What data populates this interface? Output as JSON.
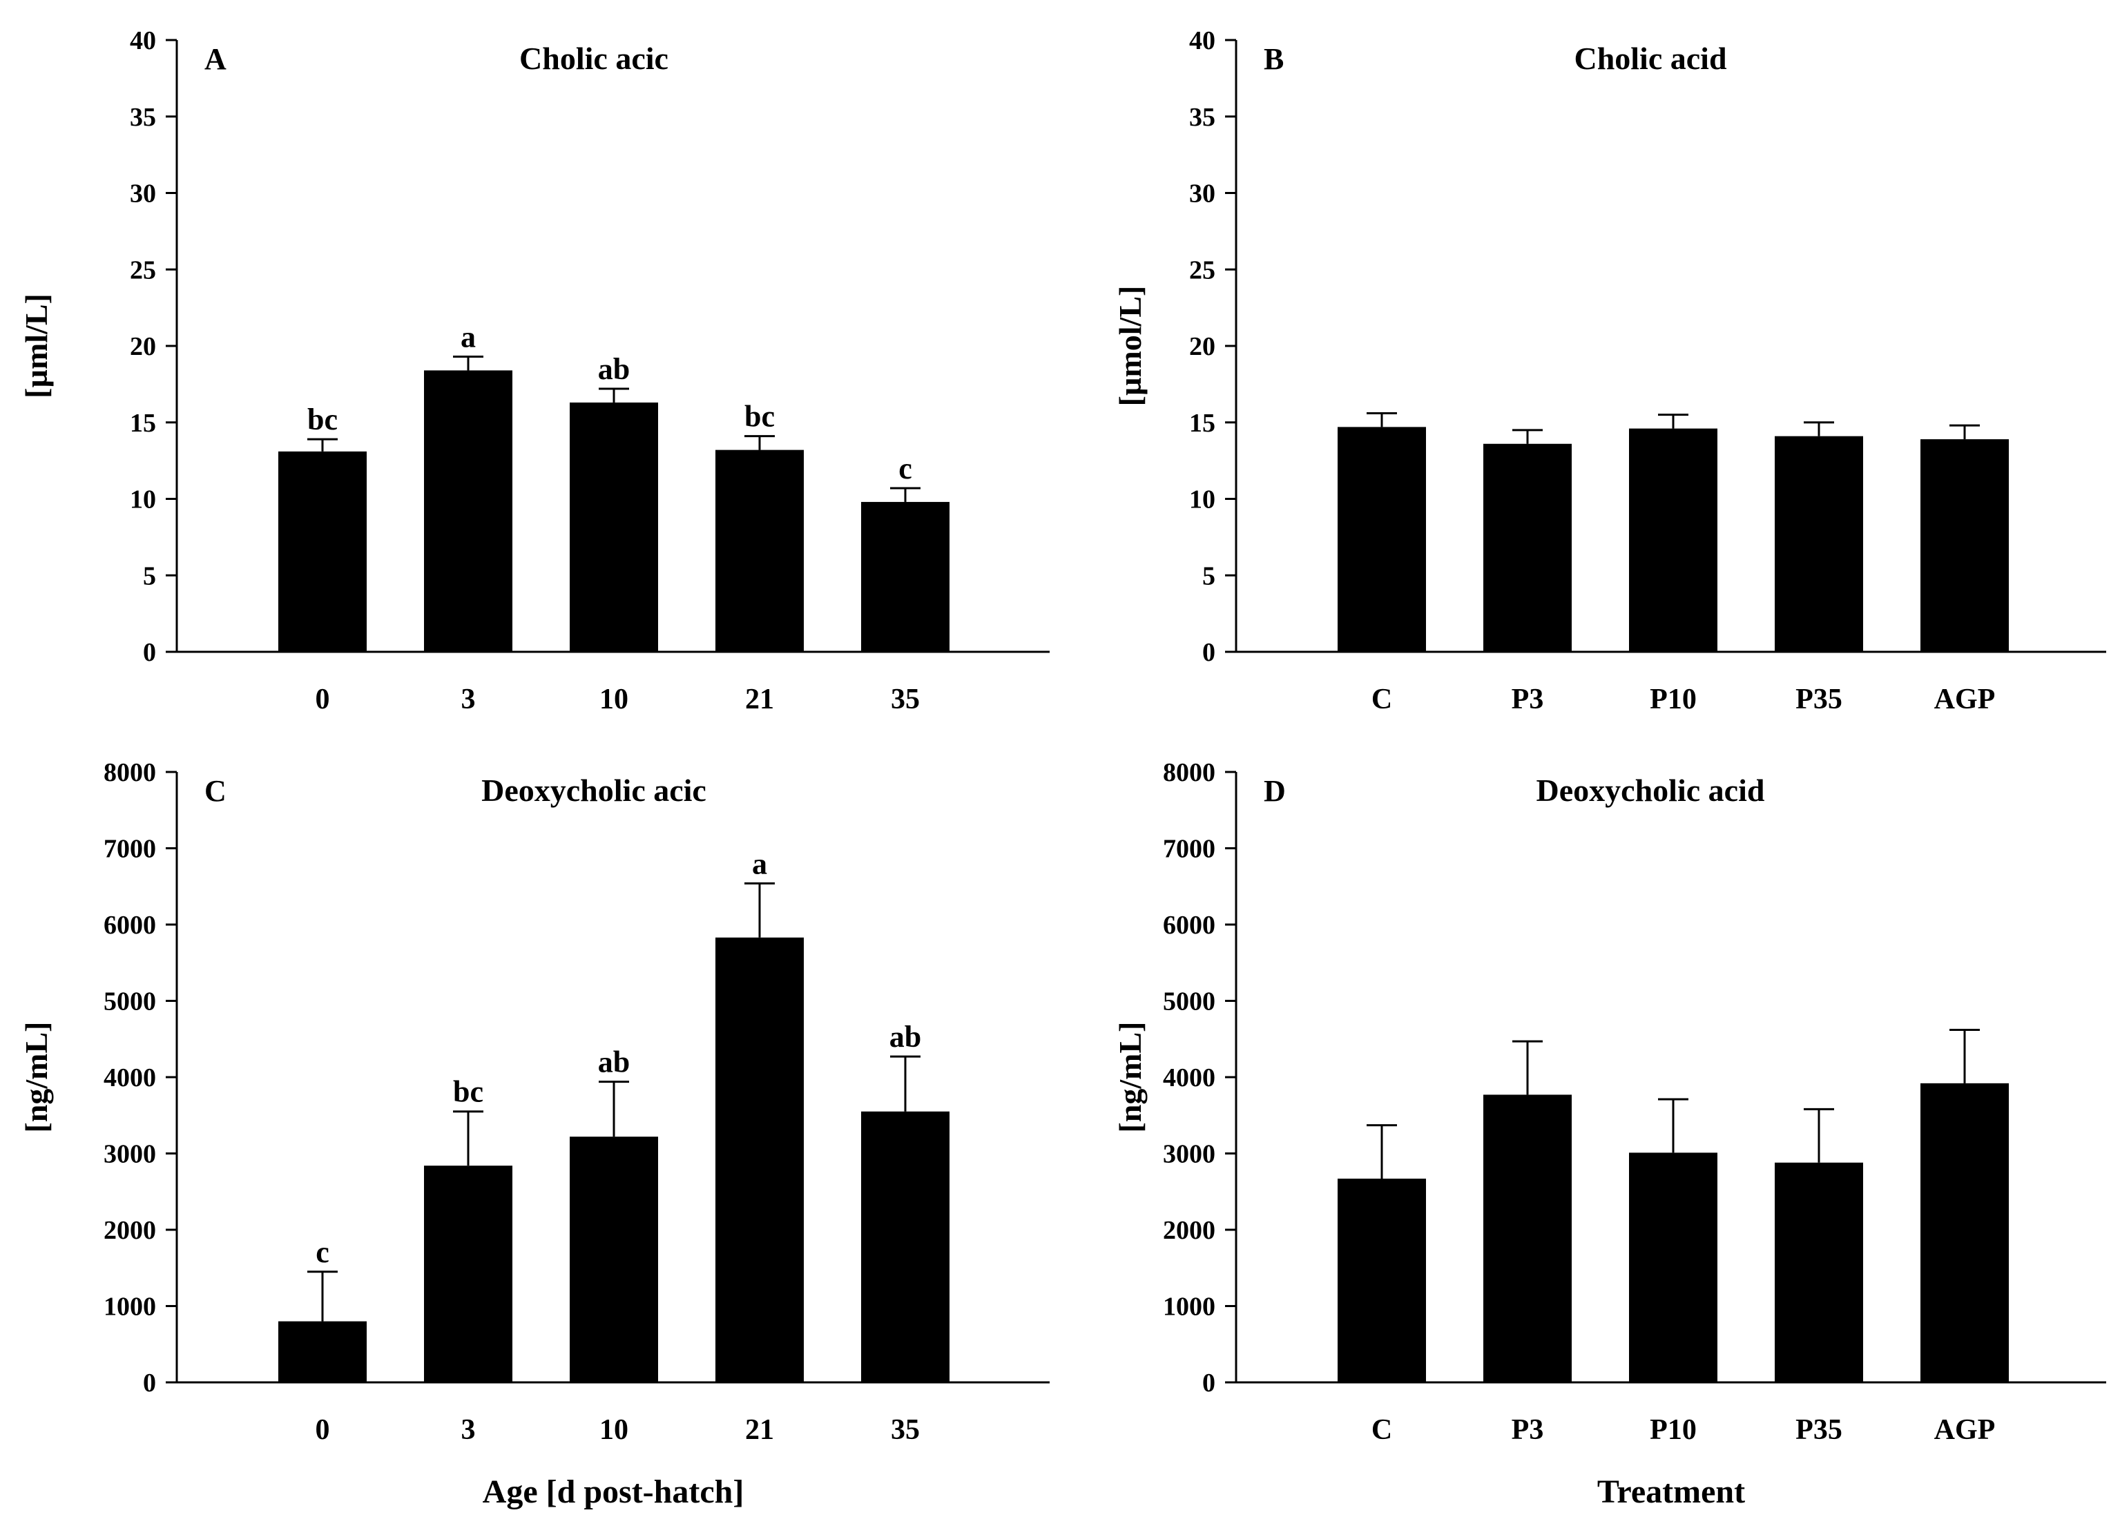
{
  "figure": {
    "background": "#ffffff",
    "bar_color": "#000000"
  },
  "chart_data": [
    {
      "type": "bar",
      "panel": "A",
      "title": "Cholic acic",
      "ylabel": "[µml/L]",
      "xlabel": "",
      "ylim": [
        0,
        40
      ],
      "yticks": [
        0,
        5,
        10,
        15,
        20,
        25,
        30,
        35,
        40
      ],
      "categories": [
        "0",
        "3",
        "10",
        "21",
        "35"
      ],
      "values": [
        13.1,
        18.4,
        16.3,
        13.2,
        9.8
      ],
      "errors": [
        0.8,
        0.9,
        0.9,
        0.9,
        0.9
      ],
      "labels": [
        "bc",
        "a",
        "ab",
        "bc",
        "c"
      ]
    },
    {
      "type": "bar",
      "panel": "B",
      "title": "Cholic acid",
      "ylabel": "[µmol/L]",
      "xlabel": "",
      "ylim": [
        0,
        40
      ],
      "yticks": [
        0,
        5,
        10,
        15,
        20,
        25,
        30,
        35,
        40
      ],
      "categories": [
        "C",
        "P3",
        "P10",
        "P35",
        "AGP"
      ],
      "values": [
        14.7,
        13.6,
        14.6,
        14.1,
        13.9
      ],
      "errors": [
        0.9,
        0.9,
        0.9,
        0.9,
        0.9
      ],
      "labels": [
        "",
        "",
        "",
        "",
        ""
      ]
    },
    {
      "type": "bar",
      "panel": "C",
      "title": "Deoxycholic acic",
      "ylabel": "[ng/mL]",
      "xlabel": "Age [d post-hatch]",
      "ylim": [
        0,
        8000
      ],
      "yticks": [
        0,
        1000,
        2000,
        3000,
        4000,
        5000,
        6000,
        7000,
        8000
      ],
      "categories": [
        "0",
        "3",
        "10",
        "21",
        "35"
      ],
      "values": [
        800,
        2840,
        3220,
        5830,
        3550
      ],
      "errors": [
        650,
        710,
        720,
        710,
        720
      ],
      "labels": [
        "c",
        "bc",
        "ab",
        "a",
        "ab"
      ]
    },
    {
      "type": "bar",
      "panel": "D",
      "title": "Deoxycholic acid",
      "ylabel": "[ng/mL]",
      "xlabel": "Treatment",
      "ylim": [
        0,
        8000
      ],
      "yticks": [
        0,
        1000,
        2000,
        3000,
        4000,
        5000,
        6000,
        7000,
        8000
      ],
      "categories": [
        "C",
        "P3",
        "P10",
        "P35",
        "AGP"
      ],
      "values": [
        2670,
        3770,
        3010,
        2880,
        3920
      ],
      "errors": [
        700,
        700,
        700,
        700,
        700
      ],
      "labels": [
        "",
        "",
        "",
        "",
        ""
      ]
    }
  ]
}
